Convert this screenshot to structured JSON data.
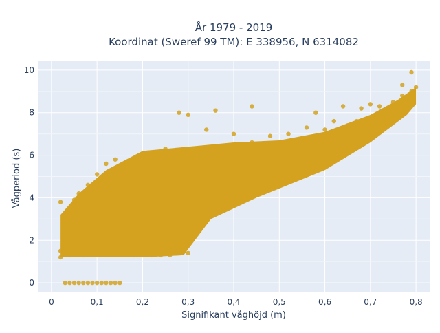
{
  "chart_data": {
    "type": "scatter",
    "title_lines": [
      "År 1979 - 2019",
      "Koordinat (Sweref 99 TM): E 338956, N 6314082"
    ],
    "xlabel": "Signifikant våghöjd (m)",
    "ylabel": "Vågperiod (s)",
    "xlim": [
      -0.03,
      0.83
    ],
    "ylim": [
      -0.45,
      10.45
    ],
    "xticks": [
      0,
      0.1,
      0.2,
      0.3,
      0.4,
      0.5,
      0.6,
      0.7,
      0.8
    ],
    "xtick_labels": [
      "0",
      "0,1",
      "0,2",
      "0,3",
      "0,4",
      "0,5",
      "0,6",
      "0,7",
      "0,8"
    ],
    "yticks": [
      0,
      2,
      4,
      6,
      8,
      10
    ],
    "ytick_labels": [
      "0",
      "2",
      "4",
      "6",
      "8",
      "10"
    ],
    "grid": true,
    "legend": "none",
    "marker_color": "#d4a21f",
    "background_color": "#e5ecf6",
    "points": [
      [
        0.02,
        1.2
      ],
      [
        0.02,
        1.5
      ],
      [
        0.02,
        3.8
      ],
      [
        0.03,
        1.8
      ],
      [
        0.03,
        2.4
      ],
      [
        0.03,
        3.0
      ],
      [
        0.04,
        1.3
      ],
      [
        0.04,
        2.2
      ],
      [
        0.04,
        3.4
      ],
      [
        0.05,
        1.4
      ],
      [
        0.05,
        2.6
      ],
      [
        0.05,
        3.9
      ],
      [
        0.06,
        1.6
      ],
      [
        0.06,
        2.8
      ],
      [
        0.06,
        4.2
      ],
      [
        0.07,
        1.3
      ],
      [
        0.07,
        3.1
      ],
      [
        0.08,
        1.8
      ],
      [
        0.08,
        3.6
      ],
      [
        0.08,
        4.6
      ],
      [
        0.09,
        2.2
      ],
      [
        0.09,
        3.3
      ],
      [
        0.1,
        1.5
      ],
      [
        0.1,
        2.7
      ],
      [
        0.1,
        4.0
      ],
      [
        0.1,
        5.1
      ],
      [
        0.11,
        3.4
      ],
      [
        0.11,
        4.5
      ],
      [
        0.12,
        1.9
      ],
      [
        0.12,
        3.8
      ],
      [
        0.12,
        5.6
      ],
      [
        0.13,
        2.4
      ],
      [
        0.13,
        4.2
      ],
      [
        0.14,
        3.1
      ],
      [
        0.14,
        5.8
      ],
      [
        0.15,
        1.3
      ],
      [
        0.15,
        2.6
      ],
      [
        0.15,
        4.4
      ],
      [
        0.16,
        3.6
      ],
      [
        0.16,
        5.2
      ],
      [
        0.17,
        2.2
      ],
      [
        0.17,
        4.8
      ],
      [
        0.18,
        1.3
      ],
      [
        0.18,
        3.4
      ],
      [
        0.18,
        5.4
      ],
      [
        0.19,
        4.1
      ],
      [
        0.2,
        1.3
      ],
      [
        0.2,
        2.6
      ],
      [
        0.2,
        3.9
      ],
      [
        0.2,
        5.7
      ],
      [
        0.21,
        4.6
      ],
      [
        0.22,
        1.3
      ],
      [
        0.22,
        3.3
      ],
      [
        0.22,
        5.1
      ],
      [
        0.23,
        4.3
      ],
      [
        0.24,
        1.3
      ],
      [
        0.24,
        2.8
      ],
      [
        0.24,
        5.8
      ],
      [
        0.25,
        3.8
      ],
      [
        0.25,
        6.3
      ],
      [
        0.26,
        1.3
      ],
      [
        0.26,
        4.6
      ],
      [
        0.27,
        3.1
      ],
      [
        0.27,
        5.4
      ],
      [
        0.28,
        1.4
      ],
      [
        0.28,
        4.0
      ],
      [
        0.28,
        8.0
      ],
      [
        0.29,
        4.8
      ],
      [
        0.3,
        1.4
      ],
      [
        0.3,
        3.2
      ],
      [
        0.3,
        5.7
      ],
      [
        0.3,
        7.9
      ],
      [
        0.31,
        4.4
      ],
      [
        0.32,
        3.5
      ],
      [
        0.32,
        6.0
      ],
      [
        0.33,
        5.1
      ],
      [
        0.34,
        3.8
      ],
      [
        0.34,
        7.2
      ],
      [
        0.35,
        4.6
      ],
      [
        0.35,
        5.9
      ],
      [
        0.36,
        3.9
      ],
      [
        0.36,
        8.1
      ],
      [
        0.37,
        5.3
      ],
      [
        0.38,
        4.2
      ],
      [
        0.38,
        6.4
      ],
      [
        0.39,
        4.8
      ],
      [
        0.4,
        4.3
      ],
      [
        0.4,
        5.6
      ],
      [
        0.4,
        7.0
      ],
      [
        0.41,
        6.1
      ],
      [
        0.42,
        4.7
      ],
      [
        0.43,
        5.4
      ],
      [
        0.44,
        6.6
      ],
      [
        0.44,
        8.3
      ],
      [
        0.45,
        5.2
      ],
      [
        0.46,
        4.7
      ],
      [
        0.46,
        6.0
      ],
      [
        0.47,
        5.6
      ],
      [
        0.48,
        5.0
      ],
      [
        0.48,
        6.9
      ],
      [
        0.49,
        6.2
      ],
      [
        0.5,
        5.3
      ],
      [
        0.5,
        6.5
      ],
      [
        0.51,
        5.8
      ],
      [
        0.52,
        5.3
      ],
      [
        0.52,
        7.0
      ],
      [
        0.53,
        6.4
      ],
      [
        0.54,
        5.5
      ],
      [
        0.55,
        6.8
      ],
      [
        0.56,
        6.0
      ],
      [
        0.56,
        7.3
      ],
      [
        0.57,
        5.7
      ],
      [
        0.58,
        6.4
      ],
      [
        0.58,
        8.0
      ],
      [
        0.59,
        6.9
      ],
      [
        0.6,
        6.2
      ],
      [
        0.6,
        7.2
      ],
      [
        0.61,
        6.6
      ],
      [
        0.62,
        6.1
      ],
      [
        0.62,
        7.6
      ],
      [
        0.63,
        7.0
      ],
      [
        0.64,
        6.6
      ],
      [
        0.64,
        8.3
      ],
      [
        0.65,
        7.4
      ],
      [
        0.66,
        6.8
      ],
      [
        0.67,
        7.6
      ],
      [
        0.68,
        7.1
      ],
      [
        0.68,
        8.2
      ],
      [
        0.69,
        7.6
      ],
      [
        0.7,
        7.2
      ],
      [
        0.7,
        8.4
      ],
      [
        0.71,
        7.8
      ],
      [
        0.72,
        7.6
      ],
      [
        0.72,
        8.3
      ],
      [
        0.73,
        8.0
      ],
      [
        0.74,
        7.8
      ],
      [
        0.75,
        8.5
      ],
      [
        0.76,
        8.2
      ],
      [
        0.77,
        8.8
      ],
      [
        0.77,
        9.3
      ],
      [
        0.78,
        8.6
      ],
      [
        0.79,
        9.0
      ],
      [
        0.79,
        9.9
      ],
      [
        0.8,
        9.2
      ],
      [
        0.03,
        0
      ],
      [
        0.04,
        0
      ],
      [
        0.05,
        0
      ],
      [
        0.06,
        0
      ],
      [
        0.07,
        0
      ],
      [
        0.08,
        0
      ],
      [
        0.09,
        0
      ],
      [
        0.1,
        0
      ],
      [
        0.11,
        0
      ],
      [
        0.12,
        0
      ],
      [
        0.13,
        0
      ],
      [
        0.14,
        0
      ],
      [
        0.15,
        0
      ]
    ]
  }
}
